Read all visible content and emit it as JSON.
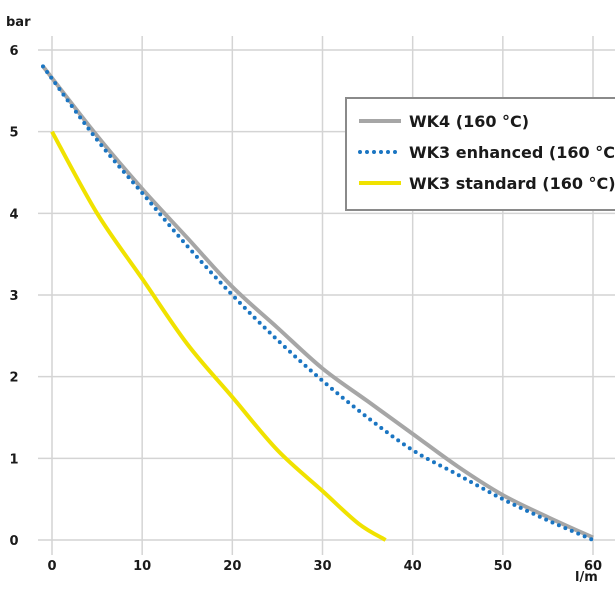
{
  "chart_data": {
    "type": "line",
    "xlabel": "l/m",
    "ylabel": "bar",
    "xlim": [
      0,
      60
    ],
    "ylim": [
      0,
      6
    ],
    "xticks": [
      0,
      10,
      20,
      30,
      40,
      50,
      60
    ],
    "yticks": [
      0,
      1,
      2,
      3,
      4,
      5,
      6
    ],
    "grid": true,
    "legend_position": "top-right",
    "series": [
      {
        "name": "WK4 (160 °C)",
        "color": "#a6a6a6",
        "style": "solid",
        "x": [
          -1,
          5,
          10,
          15,
          20,
          25,
          30,
          35,
          40,
          45,
          50,
          55,
          60
        ],
        "y": [
          5.8,
          4.95,
          4.3,
          3.7,
          3.1,
          2.6,
          2.1,
          1.7,
          1.3,
          0.9,
          0.55,
          0.28,
          0.03
        ]
      },
      {
        "name": "WK3 enhanced (160 °C",
        "color": "#1a75c2",
        "style": "dotted",
        "x": [
          -1,
          5,
          10,
          15,
          20,
          25,
          30,
          35,
          40,
          45,
          50,
          55,
          60
        ],
        "y": [
          5.8,
          4.9,
          4.25,
          3.6,
          3.0,
          2.45,
          1.95,
          1.5,
          1.1,
          0.8,
          0.5,
          0.24,
          0.0
        ]
      },
      {
        "name": "WK3 standard (160 °C)",
        "color": "#f0e200",
        "style": "solid",
        "x": [
          0,
          5,
          10,
          15,
          20,
          25,
          30,
          34,
          37
        ],
        "y": [
          5.0,
          4.0,
          3.2,
          2.4,
          1.75,
          1.1,
          0.6,
          0.2,
          0.0
        ]
      }
    ]
  }
}
